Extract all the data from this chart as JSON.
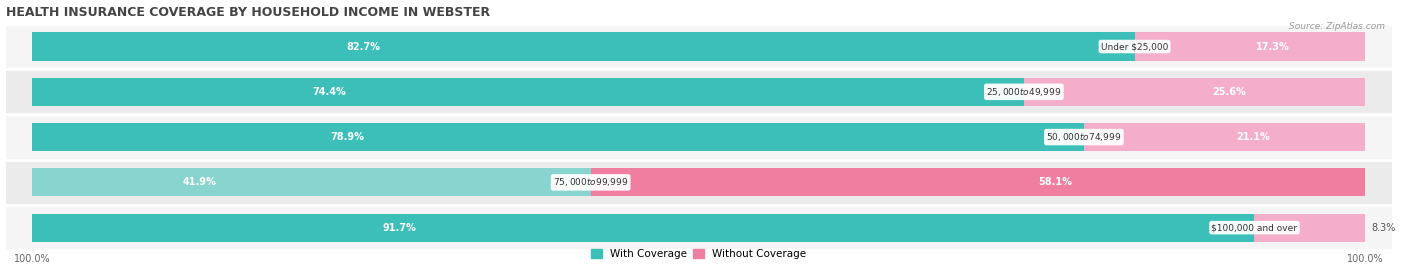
{
  "title": "HEALTH INSURANCE COVERAGE BY HOUSEHOLD INCOME IN WEBSTER",
  "source": "Source: ZipAtlas.com",
  "categories": [
    "Under $25,000",
    "$25,000 to $49,999",
    "$50,000 to $74,999",
    "$75,000 to $99,999",
    "$100,000 and over"
  ],
  "with_coverage": [
    82.7,
    74.4,
    78.9,
    41.9,
    91.7
  ],
  "without_coverage": [
    17.3,
    25.6,
    21.1,
    58.1,
    8.3
  ],
  "color_with_dark": "#3BBFB8",
  "color_with_light": "#88D5D0",
  "color_without_dark": "#F07EA0",
  "color_without_light": "#F5AECA",
  "row_colors": [
    "#F5F5F5",
    "#EEEEEE",
    "#F5F5F5",
    "#EEEEEE",
    "#F5F5F5"
  ],
  "label_fontsize": 7.0,
  "title_fontsize": 9,
  "legend_fontsize": 7.5,
  "source_fontsize": 6.5,
  "cat_label_fontsize": 6.5
}
